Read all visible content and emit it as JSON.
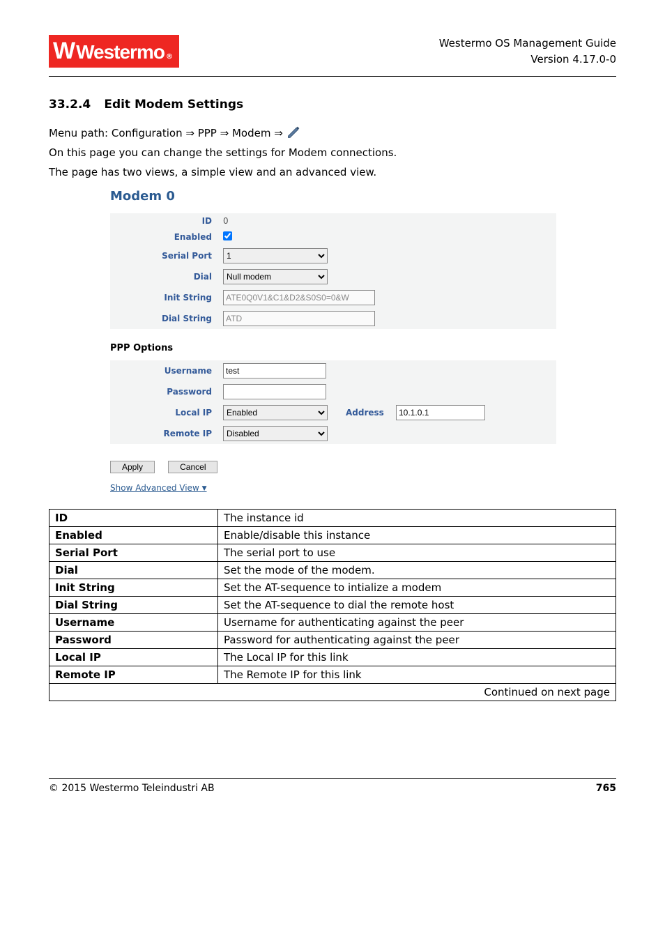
{
  "header": {
    "logo_w": "W",
    "logo_text": "Westermo",
    "line1": "Westermo OS Management Guide",
    "line2": "Version 4.17.0-0"
  },
  "section": {
    "number": "33.2.4",
    "title": "Edit Modem Settings"
  },
  "intro": {
    "line1_a": "Menu path: Configuration ",
    "line1_b": " PPP ",
    "line1_c": " Modem ",
    "arrow": "⇒",
    "line2": "On this page you can change the settings for Modem connections.",
    "line3": "The page has two views, a simple view and an advanced view."
  },
  "form": {
    "title": "Modem 0",
    "rows": {
      "id": {
        "label": "ID",
        "value": "0"
      },
      "enabled": {
        "label": "Enabled",
        "checked": true
      },
      "serial_port": {
        "label": "Serial Port",
        "value": "1"
      },
      "dial": {
        "label": "Dial",
        "value": "Null modem"
      },
      "init_string": {
        "label": "Init String",
        "value": "ATE0Q0V1&C1&D2&S0S0=0&W"
      },
      "dial_string": {
        "label": "Dial String",
        "value": "ATD"
      }
    },
    "ppp_title": "PPP Options",
    "ppp": {
      "username": {
        "label": "Username",
        "value": "test"
      },
      "password": {
        "label": "Password",
        "value": ""
      },
      "local_ip": {
        "label": "Local IP",
        "value": "Enabled",
        "addr_label": "Address",
        "addr_value": "10.1.0.1"
      },
      "remote_ip": {
        "label": "Remote IP",
        "value": "Disabled"
      }
    },
    "buttons": {
      "apply": "Apply",
      "cancel": "Cancel"
    },
    "adv_link": "Show Advanced View",
    "adv_tri": "▼"
  },
  "desc": {
    "rows": [
      {
        "k": "ID",
        "v": "The instance id"
      },
      {
        "k": "Enabled",
        "v": "Enable/disable this instance"
      },
      {
        "k": "Serial Port",
        "v": "The serial port to use"
      },
      {
        "k": "Dial",
        "v": "Set the mode of the modem."
      },
      {
        "k": "Init String",
        "v": "Set the AT-sequence to intialize a modem"
      },
      {
        "k": "Dial String",
        "v": "Set the AT-sequence to dial the remote host"
      },
      {
        "k": "Username",
        "v": "Username for authenticating against the peer"
      },
      {
        "k": "Password",
        "v": "Password for authenticating against the peer"
      },
      {
        "k": "Local IP",
        "v": "The Local IP for this link"
      },
      {
        "k": "Remote IP",
        "v": "The Remote IP for this link"
      }
    ],
    "cont": "Continued on next page"
  },
  "footer": {
    "copyright": "© 2015 Westermo Teleindustri AB",
    "page": "765"
  },
  "colors": {
    "brand_red": "#ee2722",
    "label_blue": "#335a99",
    "title_blue": "#2a5a90",
    "panel_bg": "#f3f4f4"
  }
}
